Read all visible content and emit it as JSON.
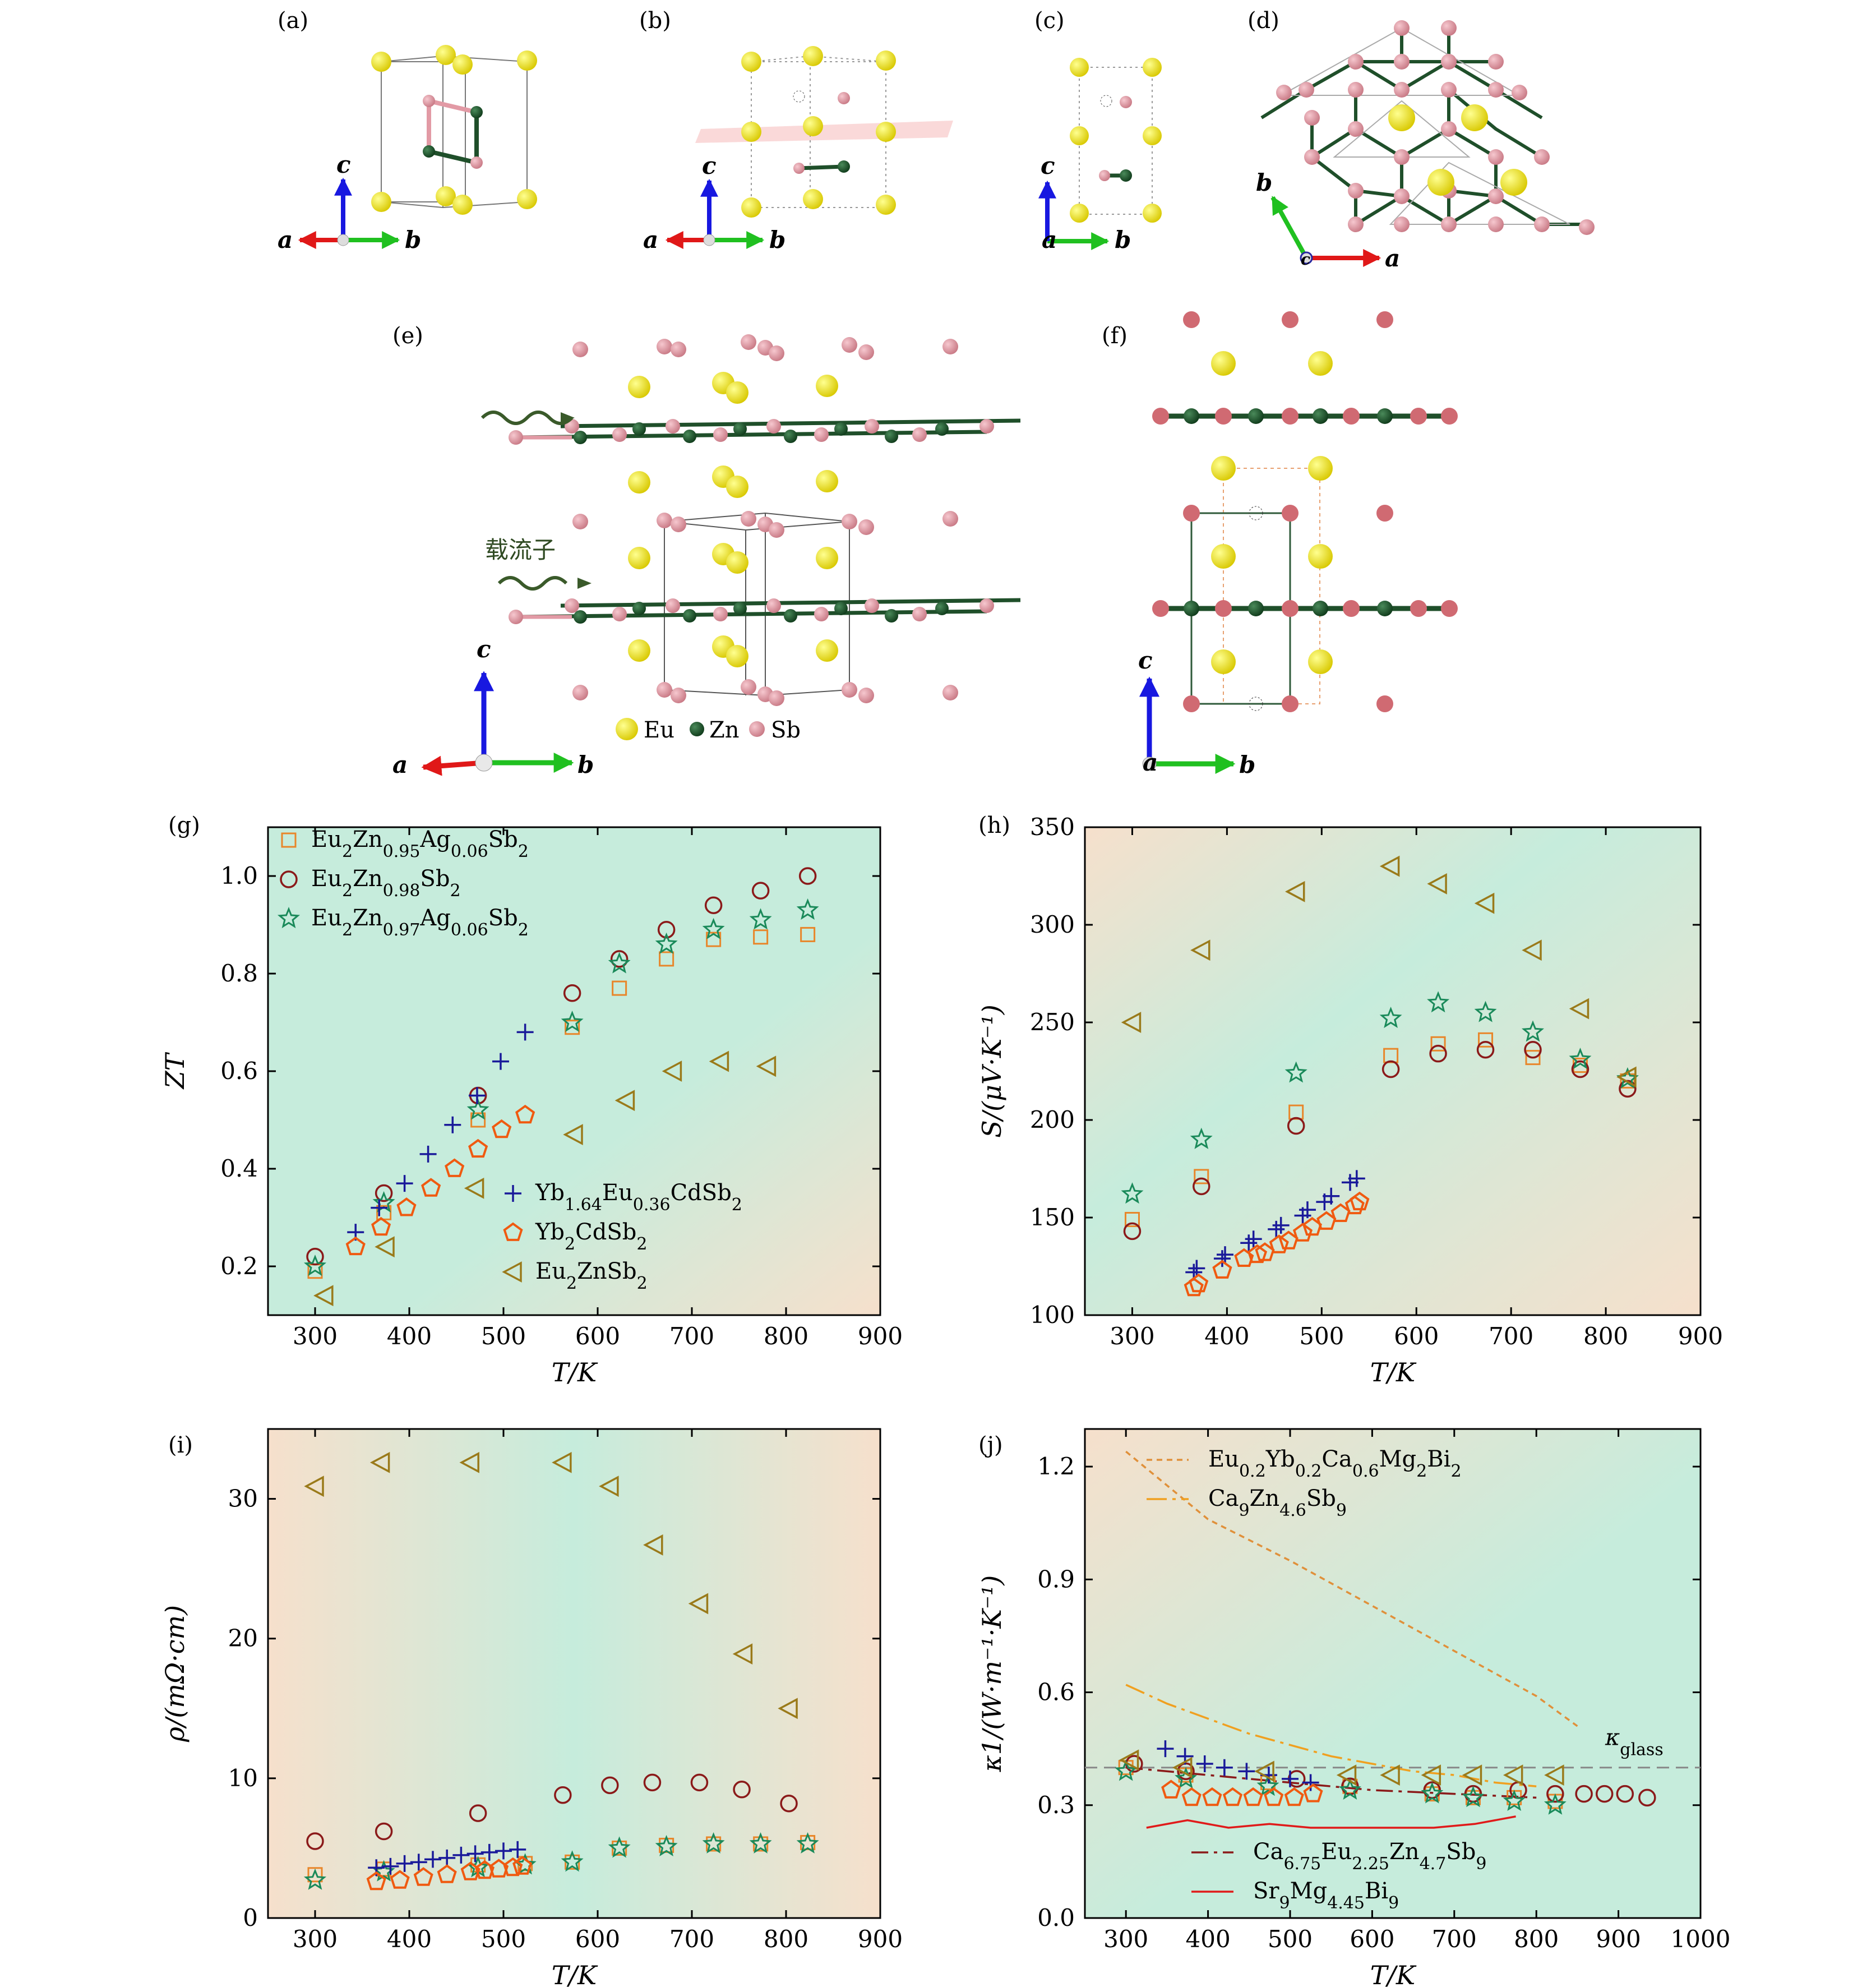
{
  "panels": {
    "a": "(a)",
    "b": "(b)",
    "c": "(c)",
    "d": "(d)",
    "e": "(e)",
    "f": "(f)",
    "g": "(g)",
    "h": "(h)",
    "i": "(i)",
    "j": "(j)"
  },
  "structure": {
    "axis_a": "a",
    "axis_b": "b",
    "axis_c": "c",
    "carrier_label": "载流子",
    "atom_legend": [
      {
        "name": "Eu",
        "color": "#e8e000"
      },
      {
        "name": "Zn",
        "color": "#1f4f2a"
      },
      {
        "name": "Sb",
        "color": "#d98f99"
      }
    ]
  },
  "colors": {
    "eu2zn095": "#e8862a",
    "eu2zn098": "#8b1a1a",
    "eu2zn097": "#1a8a5a",
    "yb164": "#1a1a9a",
    "yb2cd": "#f05a10",
    "eu2znsb2": "#9a7a1a",
    "kappa_glass_line": "#888888",
    "eu02": "#e0903a",
    "ca9": "#f0a020",
    "ca675": "#8b1a1a",
    "sr9": "#e01a1a",
    "bg_orange": "#f6e0cc",
    "bg_green": "#c6ecdc"
  },
  "chart_data": [
    {
      "panel": "g",
      "type": "scatter",
      "ylabel": "ZT",
      "xlabel": "T/K",
      "xlim": [
        250,
        900
      ],
      "ylim": [
        0.1,
        1.1
      ],
      "xticks": [
        300,
        400,
        500,
        600,
        700,
        800,
        900
      ],
      "yticks": [
        0.2,
        0.4,
        0.6,
        0.8,
        1.0
      ],
      "legend_top": [
        "Eu2Zn0.95Ag0.06Sb2",
        "Eu2Zn0.98Sb2",
        "Eu2Zn0.97Ag0.06Sb2"
      ],
      "legend_bottom": [
        "Yb1.64Eu0.36CdSb2",
        "Yb2CdSb2",
        "Eu2ZnSb2"
      ],
      "series": [
        {
          "name": "Eu2Zn0.95Ag0.06Sb2",
          "marker": "square",
          "color_key": "eu2zn095",
          "x": [
            300,
            373,
            473,
            573,
            623,
            673,
            723,
            773,
            823
          ],
          "y": [
            0.19,
            0.31,
            0.5,
            0.69,
            0.77,
            0.83,
            0.87,
            0.875,
            0.88
          ]
        },
        {
          "name": "Eu2Zn0.98Sb2",
          "marker": "circle",
          "color_key": "eu2zn098",
          "x": [
            300,
            373,
            473,
            573,
            623,
            673,
            723,
            773,
            823
          ],
          "y": [
            0.22,
            0.35,
            0.55,
            0.76,
            0.83,
            0.89,
            0.94,
            0.97,
            1.0
          ]
        },
        {
          "name": "Eu2Zn0.97Ag0.06Sb2",
          "marker": "star",
          "color_key": "eu2zn097",
          "x": [
            300,
            373,
            473,
            573,
            623,
            673,
            723,
            773,
            823
          ],
          "y": [
            0.2,
            0.33,
            0.52,
            0.7,
            0.82,
            0.86,
            0.89,
            0.91,
            0.93
          ]
        },
        {
          "name": "Yb1.64Eu0.36CdSb2",
          "marker": "plus",
          "color_key": "yb164",
          "x": [
            343,
            368,
            395,
            420,
            446,
            472,
            497,
            523
          ],
          "y": [
            0.27,
            0.32,
            0.37,
            0.43,
            0.49,
            0.55,
            0.62,
            0.68
          ]
        },
        {
          "name": "Yb2CdSb2",
          "marker": "pentagon",
          "color_key": "yb2cd",
          "x": [
            343,
            370,
            397,
            423,
            448,
            473,
            498,
            523
          ],
          "y": [
            0.24,
            0.28,
            0.32,
            0.36,
            0.4,
            0.44,
            0.48,
            0.51
          ]
        },
        {
          "name": "Eu2ZnSb2",
          "marker": "triangle-left",
          "color_key": "eu2znsb2",
          "x": [
            310,
            375,
            470,
            575,
            630,
            680,
            730,
            780
          ],
          "y": [
            0.14,
            0.24,
            0.36,
            0.47,
            0.54,
            0.6,
            0.62,
            0.61
          ]
        }
      ]
    },
    {
      "panel": "h",
      "type": "scatter",
      "ylabel": "S/(μV·K⁻¹)",
      "xlabel": "T/K",
      "xlim": [
        250,
        900
      ],
      "ylim": [
        100,
        350
      ],
      "xticks": [
        300,
        400,
        500,
        600,
        700,
        800,
        900
      ],
      "yticks": [
        100,
        150,
        200,
        250,
        300,
        350
      ],
      "series": [
        {
          "name": "Eu2Zn0.95Ag0.06Sb2",
          "marker": "square",
          "color_key": "eu2zn095",
          "x": [
            300,
            373,
            473,
            573,
            623,
            673,
            723,
            773,
            823
          ],
          "y": [
            149,
            171,
            204,
            233,
            239,
            241,
            232,
            228,
            220
          ]
        },
        {
          "name": "Eu2Zn0.98Sb2",
          "marker": "circle",
          "color_key": "eu2zn098",
          "x": [
            300,
            373,
            473,
            573,
            623,
            673,
            723,
            773,
            823
          ],
          "y": [
            143,
            166,
            197,
            226,
            234,
            236,
            236,
            226,
            216
          ]
        },
        {
          "name": "Eu2Zn0.97Ag0.06Sb2",
          "marker": "star",
          "color_key": "eu2zn097",
          "x": [
            300,
            373,
            473,
            573,
            623,
            673,
            723,
            773,
            823
          ],
          "y": [
            162,
            190,
            224,
            252,
            260,
            255,
            245,
            231,
            221
          ]
        },
        {
          "name": "Yb1.64Eu0.36CdSb2",
          "marker": "plus",
          "color_key": "yb164",
          "x": [
            365,
            368,
            395,
            398,
            423,
            428,
            452,
            457,
            480,
            485,
            503,
            510,
            530,
            537
          ],
          "y": [
            122,
            124,
            129,
            131,
            137,
            139,
            144,
            146,
            151,
            154,
            158,
            161,
            168,
            170
          ]
        },
        {
          "name": "Yb2CdSb2",
          "marker": "pentagon",
          "color_key": "yb2cd",
          "x": [
            365,
            370,
            395,
            418,
            432,
            440,
            455,
            465,
            480,
            490,
            505,
            520,
            535,
            540
          ],
          "y": [
            114,
            116,
            123,
            129,
            131,
            132,
            136,
            138,
            142,
            145,
            148,
            152,
            156,
            158
          ]
        },
        {
          "name": "Eu2ZnSb2",
          "marker": "triangle-left",
          "color_key": "eu2znsb2",
          "x": [
            300,
            373,
            473,
            573,
            623,
            673,
            723,
            773,
            823
          ],
          "y": [
            250,
            287,
            317,
            330,
            321,
            311,
            287,
            257,
            222
          ]
        }
      ]
    },
    {
      "panel": "i",
      "type": "scatter",
      "ylabel": "ρ/(mΩ·cm)",
      "xlabel": "T/K",
      "xlim": [
        250,
        900
      ],
      "ylim": [
        0,
        35
      ],
      "xticks": [
        300,
        400,
        500,
        600,
        700,
        800,
        900
      ],
      "yticks": [
        0,
        10,
        20,
        30
      ],
      "series": [
        {
          "name": "Eu2Zn0.95Ag0.06Sb2",
          "marker": "square",
          "color_key": "eu2zn095",
          "x": [
            300,
            373,
            473,
            523,
            573,
            623,
            673,
            723,
            773,
            823
          ],
          "y": [
            3.1,
            3.5,
            3.8,
            3.9,
            4.0,
            5.0,
            5.2,
            5.3,
            5.3,
            5.4
          ]
        },
        {
          "name": "Eu2Zn0.98Sb2",
          "marker": "circle",
          "color_key": "eu2zn098",
          "x": [
            300,
            373,
            473,
            563,
            613,
            658,
            708,
            753,
            803
          ],
          "y": [
            5.5,
            6.2,
            7.5,
            8.8,
            9.5,
            9.7,
            9.7,
            9.2,
            8.2
          ]
        },
        {
          "name": "Eu2Zn0.97Ag0.06Sb2",
          "marker": "star",
          "color_key": "eu2zn097",
          "x": [
            300,
            373,
            473,
            523,
            573,
            623,
            673,
            723,
            773,
            823
          ],
          "y": [
            2.7,
            3.3,
            3.6,
            3.8,
            4.0,
            5.0,
            5.1,
            5.3,
            5.3,
            5.3
          ]
        },
        {
          "name": "Yb1.64Eu0.36CdSb2",
          "marker": "plus",
          "color_key": "yb164",
          "x": [
            365,
            380,
            395,
            410,
            425,
            440,
            455,
            470,
            485,
            500,
            515
          ],
          "y": [
            3.6,
            3.7,
            3.9,
            4.0,
            4.2,
            4.3,
            4.5,
            4.6,
            4.7,
            4.8,
            4.9
          ]
        },
        {
          "name": "Yb2CdSb2",
          "marker": "pentagon",
          "color_key": "yb2cd",
          "x": [
            365,
            390,
            415,
            440,
            465,
            480,
            495,
            510,
            520
          ],
          "y": [
            2.6,
            2.7,
            2.9,
            3.1,
            3.3,
            3.4,
            3.5,
            3.6,
            3.7
          ]
        },
        {
          "name": "Eu2ZnSb2",
          "marker": "triangle-left",
          "color_key": "eu2znsb2",
          "x": [
            300,
            370,
            465,
            563,
            613,
            660,
            708,
            755,
            803
          ],
          "y": [
            30.9,
            32.6,
            32.6,
            32.6,
            30.9,
            26.7,
            22.5,
            18.9,
            15.0
          ]
        }
      ]
    },
    {
      "panel": "j",
      "type": "line+scatter",
      "ylabel": "κ1/(W·m⁻¹·K⁻¹)",
      "xlabel": "T/K",
      "xlim": [
        250,
        1000
      ],
      "ylim": [
        0,
        1.3
      ],
      "xticks": [
        300,
        400,
        500,
        600,
        700,
        800,
        900,
        1000
      ],
      "yticks": [
        0,
        0.3,
        0.6,
        0.9,
        1.2
      ],
      "kappa_glass_label": "κglass",
      "kappa_glass": 0.4,
      "legend_top": [
        "Eu0.2Yb0.2Ca0.6Mg2Bi2",
        "Ca9Zn4.6Sb9"
      ],
      "legend_bottom": [
        "Ca6.75Eu2.25Zn4.7Sb9",
        "Sr9Mg4.45Bi9"
      ],
      "lines": [
        {
          "name": "Eu0.2Yb0.2Ca0.6Mg2Bi2",
          "style": "short-dash",
          "color_key": "eu02",
          "x": [
            300,
            350,
            400,
            500,
            600,
            700,
            800,
            850
          ],
          "y": [
            1.24,
            1.15,
            1.06,
            0.95,
            0.83,
            0.71,
            0.59,
            0.51
          ]
        },
        {
          "name": "Ca9Zn4.6Sb9",
          "style": "dash-dot",
          "color_key": "ca9",
          "x": [
            300,
            350,
            400,
            450,
            500,
            550,
            600,
            650,
            700,
            750,
            800
          ],
          "y": [
            0.62,
            0.57,
            0.53,
            0.49,
            0.46,
            0.43,
            0.41,
            0.39,
            0.38,
            0.36,
            0.35
          ]
        },
        {
          "name": "Ca6.75Eu2.25Zn4.7Sb9",
          "style": "dash-dot-dark",
          "color_key": "ca675",
          "x": [
            300,
            400,
            500,
            600,
            700,
            800
          ],
          "y": [
            0.4,
            0.38,
            0.36,
            0.34,
            0.33,
            0.32
          ]
        },
        {
          "name": "Sr9Mg4.45Bi9",
          "style": "solid",
          "color_key": "sr9",
          "x": [
            325,
            375,
            425,
            475,
            525,
            575,
            625,
            675,
            725,
            775
          ],
          "y": [
            0.24,
            0.26,
            0.24,
            0.25,
            0.24,
            0.24,
            0.24,
            0.24,
            0.25,
            0.27
          ]
        }
      ],
      "series": [
        {
          "name": "Eu2Zn0.95Ag0.06Sb2",
          "marker": "square",
          "color_key": "eu2zn095",
          "x": [
            300,
            373,
            473,
            573,
            673,
            723,
            773,
            823
          ],
          "y": [
            0.4,
            0.38,
            0.36,
            0.35,
            0.33,
            0.32,
            0.32,
            0.31
          ]
        },
        {
          "name": "Eu2Zn0.98Sb2",
          "marker": "circle",
          "color_key": "eu2zn098",
          "x": [
            310,
            373,
            508,
            573,
            673,
            723,
            778,
            823,
            858,
            883,
            908,
            935
          ],
          "y": [
            0.41,
            0.39,
            0.37,
            0.35,
            0.34,
            0.33,
            0.34,
            0.33,
            0.33,
            0.33,
            0.33,
            0.32
          ]
        },
        {
          "name": "Eu2Zn0.97Ag0.06Sb2",
          "marker": "star",
          "color_key": "eu2zn097",
          "x": [
            300,
            373,
            473,
            573,
            673,
            723,
            773,
            823
          ],
          "y": [
            0.39,
            0.37,
            0.35,
            0.34,
            0.33,
            0.32,
            0.31,
            0.3
          ]
        },
        {
          "name": "Yb1.64Eu0.36CdSb2",
          "marker": "plus",
          "color_key": "yb164",
          "x": [
            348,
            372,
            396,
            420,
            447,
            474,
            500,
            525
          ],
          "y": [
            0.45,
            0.43,
            0.41,
            0.4,
            0.39,
            0.38,
            0.37,
            0.36
          ]
        },
        {
          "name": "Yb2CdSb2",
          "marker": "pentagon",
          "color_key": "yb2cd",
          "x": [
            355,
            380,
            405,
            430,
            455,
            480,
            505,
            528
          ],
          "y": [
            0.34,
            0.32,
            0.32,
            0.32,
            0.32,
            0.32,
            0.32,
            0.33
          ]
        },
        {
          "name": "Eu2ZnSb2",
          "marker": "triangle-left",
          "color_key": "eu2znsb2",
          "x": [
            305,
            370,
            470,
            570,
            623,
            673,
            723,
            773,
            823
          ],
          "y": [
            0.42,
            0.4,
            0.39,
            0.38,
            0.38,
            0.38,
            0.38,
            0.38,
            0.38
          ]
        }
      ]
    }
  ]
}
